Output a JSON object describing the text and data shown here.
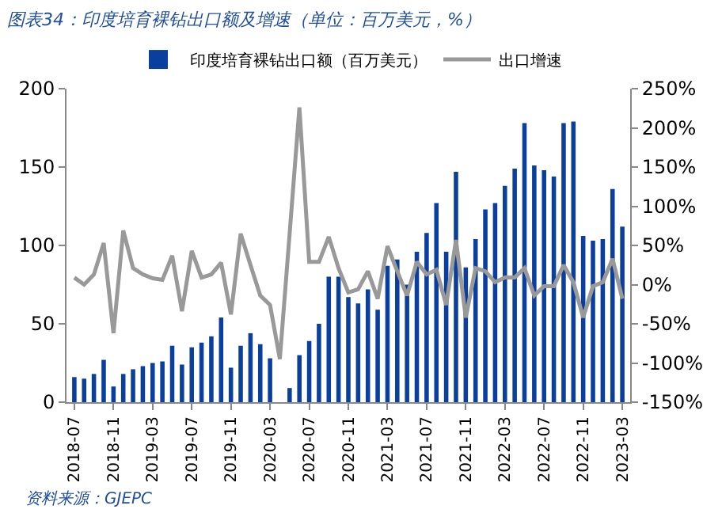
{
  "chart_data": {
    "type": "bar",
    "title": "图表34：印度培育裸钻出口额及增速（单位：百万美元，%）",
    "categories": [
      "2018-07",
      null,
      null,
      null,
      "2018-11",
      null,
      null,
      null,
      "2019-03",
      null,
      null,
      null,
      "2019-07",
      null,
      null,
      null,
      "2019-11",
      null,
      null,
      null,
      "2020-03",
      null,
      null,
      null,
      "2020-07",
      null,
      null,
      null,
      "2020-11",
      null,
      null,
      null,
      "2021-03",
      null,
      null,
      null,
      "2021-07",
      null,
      null,
      null,
      "2021-11",
      null,
      null,
      null,
      "2022-03",
      null,
      null,
      null,
      "2022-07",
      null,
      null,
      null,
      "2022-11",
      null,
      null,
      null,
      "2023-03"
    ],
    "series": [
      {
        "name": "印度培育裸钻出口额（百万美元）",
        "color": "#0b3f9e",
        "values": [
          16,
          15,
          18,
          27,
          10,
          18,
          21,
          23,
          25,
          26,
          36,
          24,
          35,
          38,
          42,
          54,
          22,
          36,
          44,
          37,
          28,
          0,
          9,
          30,
          39,
          50,
          80,
          80,
          67,
          63,
          72,
          59,
          87,
          91,
          75,
          96,
          108,
          127,
          96,
          147,
          86,
          104,
          123,
          127,
          138,
          149,
          178,
          151,
          148,
          144,
          178,
          179,
          106,
          103,
          104,
          136,
          112
        ]
      },
      {
        "name": "出口增速",
        "type": "line",
        "axis": "y2",
        "color": "#999999",
        "line_style": "solid",
        "values": [
          9,
          0,
          13,
          53,
          -62,
          69,
          21,
          13,
          8,
          6,
          37,
          -34,
          43,
          9,
          13,
          28,
          -38,
          65,
          25,
          -14,
          -26,
          -95,
          65,
          226,
          29,
          29,
          61,
          21,
          -10,
          -6,
          17,
          -18,
          49,
          17,
          -14,
          29,
          13,
          19,
          -26,
          57,
          -42,
          21,
          17,
          3,
          9,
          9,
          21,
          -14,
          -2,
          -2,
          25,
          3,
          -42,
          -2,
          3,
          33,
          -18
        ]
      }
    ],
    "ylim": [
      0,
      200
    ],
    "yticks": [
      0,
      50,
      100,
      150,
      200
    ],
    "y2lim": [
      -150,
      250
    ],
    "y2ticks": [
      {
        "value": -150,
        "label": "-150%"
      },
      {
        "value": -100,
        "label": "-100%"
      },
      {
        "value": -50,
        "label": "-50%"
      },
      {
        "value": 0,
        "label": "0%"
      },
      {
        "value": 50,
        "label": "50%"
      },
      {
        "value": 100,
        "label": "100%"
      },
      {
        "value": 150,
        "label": "150%"
      },
      {
        "value": 200,
        "label": "200%"
      },
      {
        "value": 250,
        "label": "250%"
      }
    ],
    "legend": "top",
    "marker": "none",
    "annotations": [
      "资料来源：GJEPC"
    ]
  }
}
